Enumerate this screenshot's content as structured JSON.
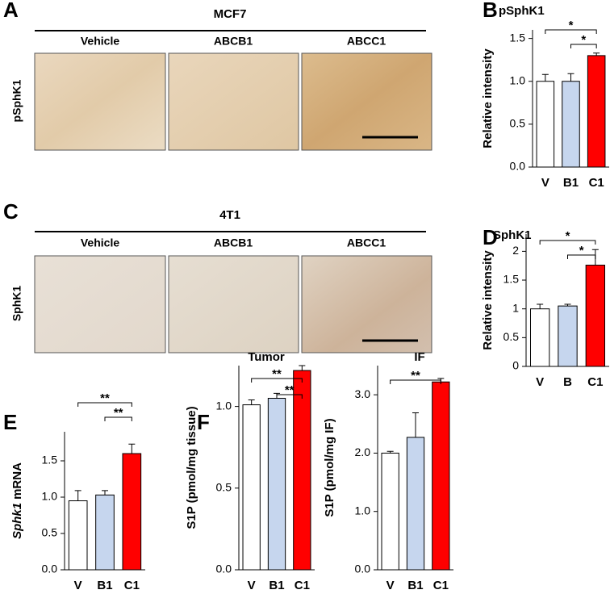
{
  "panel_letters": [
    "A",
    "B",
    "C",
    "D",
    "E",
    "F"
  ],
  "image_panels": [
    {
      "title": "MCF7",
      "row_label": "pSphK1",
      "columns": [
        "Vehicle",
        "ABCB1",
        "ABCC1"
      ]
    },
    {
      "title": "4T1",
      "row_label": "SphK1",
      "columns": [
        "Vehicle",
        "ABCB1",
        "ABCC1"
      ]
    }
  ],
  "chart_data": [
    {
      "type": "bar",
      "title": "pSphK1",
      "ylabel": [
        "Relative intensity"
      ],
      "categories": [
        "V",
        "B1",
        "C1"
      ],
      "values": [
        1.0,
        1.0,
        1.3
      ],
      "errors": [
        0.08,
        0.09,
        0.03
      ],
      "colors": [
        "#ffffff",
        "#c6d6ee",
        "#ff0000"
      ],
      "ylim": [
        0,
        1.6
      ],
      "yticks": [
        {
          "value": 0,
          "label": "0.0"
        },
        {
          "value": 0.5,
          "label": "0.5"
        },
        {
          "value": 1,
          "label": "1.0"
        },
        {
          "value": 1.5,
          "label": "1.5"
        }
      ],
      "significance": [
        {
          "between": [
            "V",
            "C1"
          ],
          "label": "*"
        },
        {
          "between": [
            "B1",
            "C1"
          ],
          "label": "*"
        }
      ]
    },
    {
      "type": "bar",
      "title": "SphK1",
      "ylabel": [
        "Relative intensity"
      ],
      "categories": [
        "V",
        "B",
        "C1"
      ],
      "values": [
        1.0,
        1.05,
        1.76
      ],
      "errors": [
        0.08,
        0.03,
        0.27
      ],
      "colors": [
        "#ffffff",
        "#c6d6ee",
        "#ff0000"
      ],
      "ylim": [
        0,
        2.3
      ],
      "yticks": [
        0,
        0.5,
        1,
        1.5,
        2
      ],
      "significance": [
        {
          "between": [
            "V",
            "C1"
          ],
          "label": "*"
        },
        {
          "between": [
            "B",
            "C1"
          ],
          "label": "*"
        }
      ]
    },
    {
      "type": "bar",
      "ylabel": [
        "Sphk1",
        "mRNA"
      ],
      "categories": [
        "V",
        "B1",
        "C1"
      ],
      "values": [
        0.95,
        1.03,
        1.6
      ],
      "errors": [
        0.14,
        0.06,
        0.13
      ],
      "colors": [
        "#ffffff",
        "#c6d6ee",
        "#ff0000"
      ],
      "ylim": [
        0,
        1.9
      ],
      "yticks": [
        {
          "value": 0,
          "label": "0.0"
        },
        {
          "value": 0.5,
          "label": "0.5"
        },
        {
          "value": 1,
          "label": "1.0"
        },
        {
          "value": 1.5,
          "label": "1.5"
        }
      ],
      "significance": [
        {
          "between": [
            "V",
            "C1"
          ],
          "label": "**"
        },
        {
          "between": [
            "B1",
            "C1"
          ],
          "label": "**"
        }
      ]
    },
    {
      "type": "bar",
      "title": "Tumor",
      "ylabel": [
        "S1P (pmol/mg tissue)"
      ],
      "categories": [
        "V",
        "B1",
        "C1"
      ],
      "values": [
        1.01,
        1.05,
        1.22
      ],
      "errors": [
        0.03,
        0.03,
        0.03
      ],
      "colors": [
        "#ffffff",
        "#c6d6ee",
        "#ff0000"
      ],
      "ylim": [
        0,
        1.25
      ],
      "yticks": [
        {
          "value": 0,
          "label": "0.0"
        },
        {
          "value": 0.5,
          "label": "0.5"
        },
        {
          "value": 1,
          "label": "1.0"
        }
      ],
      "significance": [
        {
          "between": [
            "V",
            "C1"
          ],
          "label": "**"
        },
        {
          "between": [
            "B1",
            "C1"
          ],
          "label": "**"
        }
      ]
    },
    {
      "type": "bar",
      "title": "IF",
      "ylabel": [
        "S1P (pmol/mg IF)"
      ],
      "categories": [
        "V",
        "B1",
        "C1"
      ],
      "values": [
        2.0,
        2.27,
        3.22
      ],
      "errors": [
        0.03,
        0.42,
        0.06
      ],
      "colors": [
        "#ffffff",
        "#c6d6ee",
        "#ff0000"
      ],
      "ylim": [
        0,
        3.5
      ],
      "yticks": [
        {
          "value": 0,
          "label": "0.0"
        },
        {
          "value": 1,
          "label": "1.0"
        },
        {
          "value": 2,
          "label": "2.0"
        },
        {
          "value": 3,
          "label": "3.0"
        }
      ],
      "significance": [
        {
          "between": [
            "V",
            "C1"
          ],
          "label": "**"
        }
      ]
    }
  ]
}
